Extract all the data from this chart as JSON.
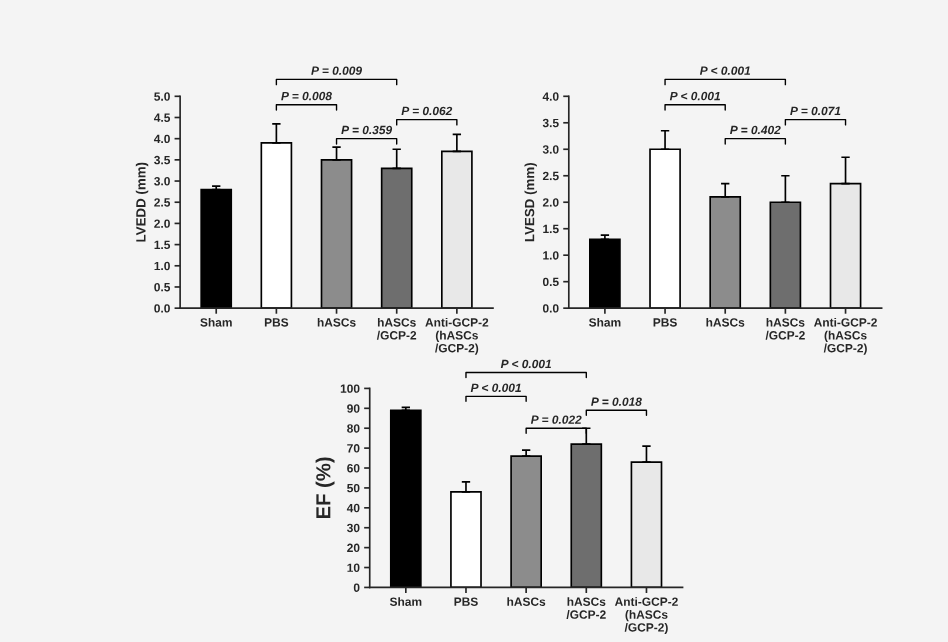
{
  "chart_data": [
    {
      "type": "bar",
      "ylabel": "LVEDD (mm)",
      "categories": [
        "Sham",
        "PBS",
        "hASCs",
        "hASCs\n/GCP-2",
        "Anti-GCP-2\n(hASCs\n/GCP-2)"
      ],
      "values": [
        2.8,
        3.9,
        3.5,
        3.3,
        3.7
      ],
      "colors": [
        "#000000",
        "#ffffff",
        "#8c8c8c",
        "#6e6e6e",
        "#e8e8e8"
      ],
      "errors": [
        [
          2.8,
          2.88
        ],
        [
          3.9,
          4.35
        ],
        [
          3.5,
          3.8
        ],
        [
          3.3,
          3.75
        ],
        [
          3.7,
          4.1
        ]
      ],
      "ylim": [
        0,
        5
      ],
      "yticks": [
        {
          "value": 0,
          "label": "0.0"
        },
        {
          "value": 0.5,
          "label": "0.5"
        },
        {
          "value": 1,
          "label": "1.0"
        },
        {
          "value": 1.5,
          "label": "1.5"
        },
        {
          "value": 2,
          "label": "2.0"
        },
        {
          "value": 2.5,
          "label": "2.5"
        },
        {
          "value": 3,
          "label": "3.0"
        },
        {
          "value": 3.5,
          "label": "3.5"
        },
        {
          "value": 4,
          "label": "4.0"
        },
        {
          "value": 4.5,
          "label": "4.5"
        },
        {
          "value": 5,
          "label": "5.0"
        }
      ],
      "annotations": [
        "P = 0.009",
        "P = 0.008",
        "P = 0.359",
        "P = 0.062"
      ]
    },
    {
      "type": "bar",
      "ylabel": "LVESD (mm)",
      "categories": [
        "Sham",
        "PBS",
        "hASCs",
        "hASCs\n/GCP-2",
        "Anti-GCP-2\n(hASCs\n/GCP-2)"
      ],
      "values": [
        1.3,
        3.0,
        2.1,
        2.0,
        2.35
      ],
      "colors": [
        "#000000",
        "#ffffff",
        "#8c8c8c",
        "#6e6e6e",
        "#e8e8e8"
      ],
      "errors": [
        [
          1.3,
          1.38
        ],
        [
          3.0,
          3.35
        ],
        [
          2.1,
          2.35
        ],
        [
          2.0,
          2.5
        ],
        [
          2.35,
          2.85
        ]
      ],
      "ylim": [
        0,
        4
      ],
      "yticks": [
        {
          "value": 0,
          "label": "0.0"
        },
        {
          "value": 0.5,
          "label": "0.5"
        },
        {
          "value": 1,
          "label": "1.0"
        },
        {
          "value": 1.5,
          "label": "1.5"
        },
        {
          "value": 2,
          "label": "2.0"
        },
        {
          "value": 2.5,
          "label": "2.5"
        },
        {
          "value": 3,
          "label": "3.0"
        },
        {
          "value": 3.5,
          "label": "3.5"
        },
        {
          "value": 4,
          "label": "4.0"
        }
      ],
      "annotations": [
        "P < 0.001",
        "P < 0.001",
        "P = 0.402",
        "P = 0.071"
      ]
    },
    {
      "type": "bar",
      "ylabel": "EF (%)",
      "categories": [
        "Sham",
        "PBS",
        "hASCs",
        "hASCs\n/GCP-2",
        "Anti-GCP-2\n(hASCs\n/GCP-2)"
      ],
      "values": [
        89,
        48,
        66,
        72,
        63
      ],
      "colors": [
        "#000000",
        "#ffffff",
        "#8c8c8c",
        "#6e6e6e",
        "#e8e8e8"
      ],
      "errors": [
        [
          89,
          90.5
        ],
        [
          48,
          53
        ],
        [
          66,
          69
        ],
        [
          72,
          80
        ],
        [
          63,
          71
        ]
      ],
      "ylim": [
        0,
        100
      ],
      "yticks": [
        0,
        10,
        20,
        30,
        40,
        50,
        60,
        70,
        80,
        90,
        100
      ],
      "annotations": [
        "P < 0.001",
        "P < 0.001",
        "P = 0.022",
        "P = 0.018"
      ]
    }
  ]
}
